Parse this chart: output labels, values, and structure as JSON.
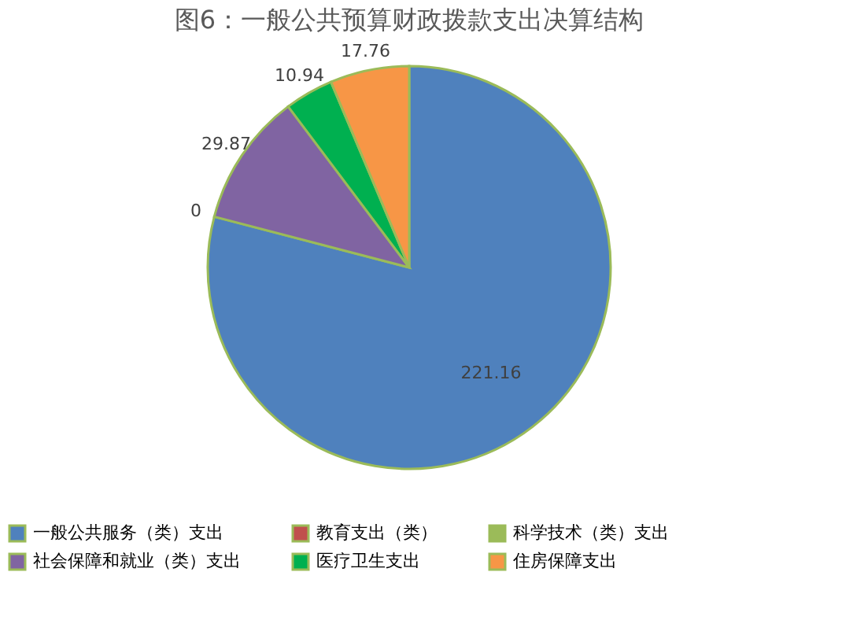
{
  "chart_data": {
    "type": "pie",
    "title": "图6：一般公共预算财政拨款支出决算结构",
    "categories": [
      "一般公共服务（类）支出",
      "教育支出（类）",
      "科学技术（类）支出",
      "社会保障和就业（类）支出",
      "医疗卫生支出",
      "住房保障支出"
    ],
    "values": [
      221.16,
      0,
      0,
      29.87,
      10.94,
      17.76
    ],
    "value_labels": [
      "221.16",
      "0",
      null,
      "29.87",
      "10.94",
      "17.76"
    ],
    "colors": [
      "#4f81bd",
      "#c0504d",
      "#9bbb59",
      "#8064a2",
      "#00b050",
      "#f79646"
    ],
    "legend": "bottom"
  }
}
